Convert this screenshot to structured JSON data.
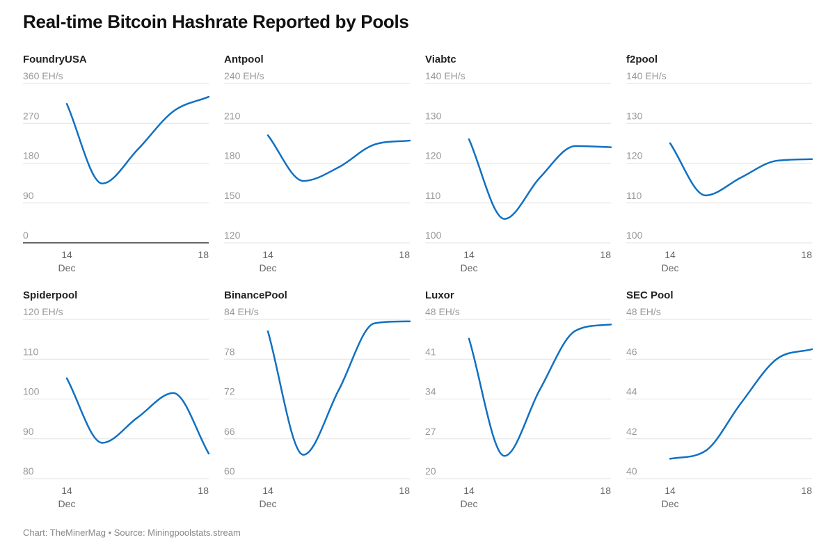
{
  "title": "Real-time Bitcoin Hashrate Reported by Pools",
  "footer": "Chart: TheMinerMag • Source: Miningpoolstats.stream",
  "line_color": "#1170c2",
  "chart_data": [
    {
      "type": "line",
      "title": "FoundryUSA",
      "unit": "EH/s",
      "yticks": [
        0,
        90,
        180,
        270,
        360
      ],
      "ylim": [
        0,
        360
      ],
      "x": [
        14,
        15,
        16,
        17,
        18
      ],
      "values": [
        314,
        134,
        211,
        297,
        330
      ],
      "xticks": [
        "14",
        "18"
      ],
      "xsub": "Dec",
      "grid": true
    },
    {
      "type": "line",
      "title": "Antpool",
      "unit": "EH/s",
      "yticks": [
        120,
        150,
        180,
        210,
        240
      ],
      "ylim": [
        120,
        240
      ],
      "x": [
        14,
        15,
        16,
        17,
        18
      ],
      "values": [
        201,
        166.6,
        177,
        194,
        197
      ],
      "xticks": [
        "14",
        "18"
      ],
      "xsub": "Dec",
      "grid": true
    },
    {
      "type": "line",
      "title": "Viabtc",
      "unit": "EH/s",
      "yticks": [
        100,
        110,
        120,
        130,
        140
      ],
      "ylim": [
        100,
        140
      ],
      "x": [
        14,
        15,
        16,
        17,
        18
      ],
      "values": [
        126,
        106,
        116.4,
        124.3,
        124
      ],
      "xticks": [
        "14",
        "18"
      ],
      "xsub": "Dec",
      "grid": true
    },
    {
      "type": "line",
      "title": "f2pool",
      "unit": "EH/s",
      "yticks": [
        100,
        110,
        120,
        130,
        140
      ],
      "ylim": [
        100,
        140
      ],
      "x": [
        14,
        15,
        16,
        17,
        18
      ],
      "values": [
        125,
        111.9,
        116.4,
        120.6,
        121
      ],
      "xticks": [
        "14",
        "18"
      ],
      "xsub": "Dec",
      "grid": true
    },
    {
      "type": "line",
      "title": "Spiderpool",
      "unit": "EH/s",
      "yticks": [
        80,
        90,
        100,
        110,
        120
      ],
      "ylim": [
        80,
        120
      ],
      "x": [
        14,
        15,
        16,
        17,
        18
      ],
      "values": [
        105.2,
        89,
        95.4,
        101.5,
        86.3
      ],
      "xticks": [
        "14",
        "18"
      ],
      "xsub": "Dec",
      "grid": true
    },
    {
      "type": "line",
      "title": "BinancePool",
      "unit": "EH/s",
      "yticks": [
        60,
        66,
        72,
        78,
        84
      ],
      "ylim": [
        60,
        84
      ],
      "x": [
        14,
        15,
        16,
        17,
        18
      ],
      "values": [
        82.2,
        63.6,
        73.4,
        83.4,
        83.7
      ],
      "xticks": [
        "14",
        "18"
      ],
      "xsub": "Dec",
      "grid": true
    },
    {
      "type": "line",
      "title": "Luxor",
      "unit": "EH/s",
      "yticks": [
        20,
        27,
        34,
        41,
        48
      ],
      "ylim": [
        20,
        48
      ],
      "x": [
        14,
        15,
        16,
        17,
        18
      ],
      "values": [
        44.6,
        24,
        35.7,
        46,
        47.1
      ],
      "xticks": [
        "14",
        "18"
      ],
      "xsub": "Dec",
      "grid": true
    },
    {
      "type": "line",
      "title": "SEC Pool",
      "unit": "EH/s",
      "yticks": [
        40,
        42,
        44,
        46,
        48
      ],
      "ylim": [
        40,
        48
      ],
      "x": [
        14,
        15,
        16,
        17,
        18
      ],
      "values": [
        41,
        41.4,
        43.8,
        46,
        46.5
      ],
      "xticks": [
        "14",
        "18"
      ],
      "xsub": "Dec",
      "grid": true
    }
  ]
}
